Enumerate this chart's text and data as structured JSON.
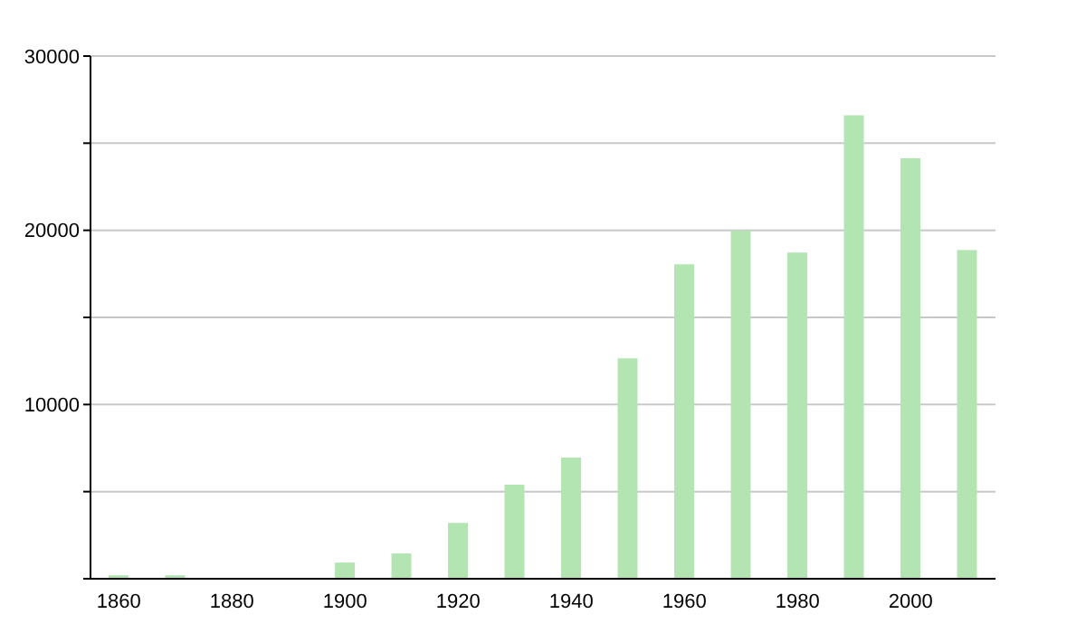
{
  "chart_data": {
    "type": "bar",
    "categories": [
      "1860",
      null,
      "1880",
      null,
      "1900",
      null,
      "1920",
      null,
      "1940",
      null,
      "1960",
      null,
      "1980",
      null,
      "2000",
      null
    ],
    "values": [
      200,
      200,
      null,
      null,
      930,
      1450,
      3200,
      5400,
      6950,
      12650,
      18050,
      19980,
      18730,
      26600,
      24130,
      18870
    ],
    "color": "#b3e5b3",
    "ylim": [
      0,
      30000
    ],
    "yticks": [
      {
        "value": 0,
        "label": null
      },
      {
        "value": 5000,
        "label": null
      },
      10000,
      {
        "value": 15000,
        "label": null
      },
      20000,
      {
        "value": 25000,
        "label": null
      },
      30000
    ],
    "grid": "y"
  }
}
